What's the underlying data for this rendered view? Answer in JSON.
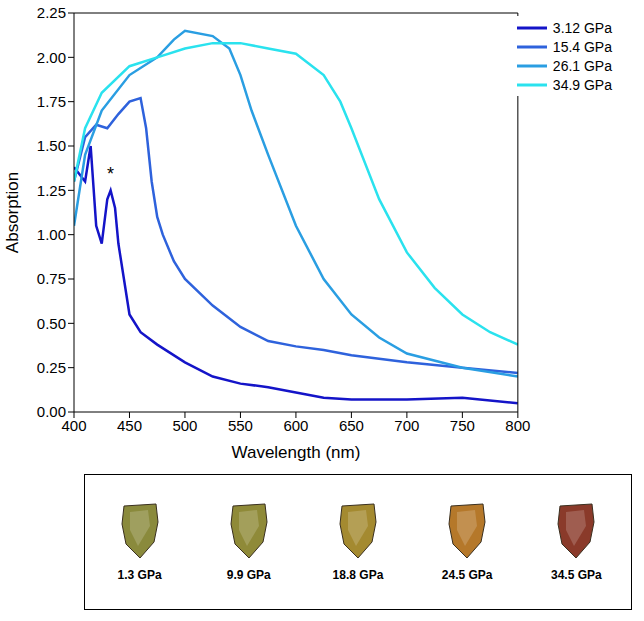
{
  "chart_data": {
    "type": "line",
    "x_label": "Wavelength (nm)",
    "y_label": "Absorption",
    "xlim": [
      400,
      800
    ],
    "xticks": [
      400,
      450,
      500,
      550,
      600,
      650,
      700,
      750,
      800
    ],
    "ylim": [
      0,
      2.25
    ],
    "yticks": [
      {
        "value": 0,
        "label": "0.00"
      },
      {
        "value": 0.25,
        "label": "0.25"
      },
      {
        "value": 0.5,
        "label": "0.50"
      },
      {
        "value": 0.75,
        "label": "0.75"
      },
      {
        "value": 1,
        "label": "1.00"
      },
      {
        "value": 1.25,
        "label": "1.25"
      },
      {
        "value": 1.5,
        "label": "1.50"
      },
      {
        "value": 1.75,
        "label": "1.75"
      },
      {
        "value": 2,
        "label": "2.00"
      },
      {
        "value": 2.25,
        "label": "2.25"
      }
    ],
    "grid": false,
    "legend": "upper right",
    "annotations": [
      {
        "text": "*",
        "x": 433,
        "y": 1.28
      }
    ],
    "series": [
      {
        "name": "3.12 GPa",
        "color": "#1414c8",
        "x": [
          400,
          410,
          415,
          420,
          425,
          430,
          433,
          437,
          440,
          445,
          450,
          460,
          475,
          500,
          525,
          550,
          575,
          600,
          625,
          650,
          700,
          750,
          800
        ],
        "values": [
          1.38,
          1.3,
          1.5,
          1.05,
          0.95,
          1.2,
          1.25,
          1.15,
          0.95,
          0.75,
          0.55,
          0.45,
          0.38,
          0.28,
          0.2,
          0.16,
          0.14,
          0.11,
          0.08,
          0.07,
          0.07,
          0.08,
          0.05
        ]
      },
      {
        "name": "15.4 GPa",
        "color": "#2e62dc",
        "x": [
          400,
          410,
          420,
          430,
          440,
          450,
          460,
          465,
          470,
          475,
          480,
          490,
          500,
          525,
          550,
          575,
          600,
          625,
          650,
          700,
          750,
          800
        ],
        "values": [
          1.3,
          1.55,
          1.62,
          1.6,
          1.68,
          1.75,
          1.77,
          1.6,
          1.3,
          1.1,
          1.0,
          0.85,
          0.75,
          0.6,
          0.48,
          0.4,
          0.37,
          0.35,
          0.32,
          0.28,
          0.25,
          0.22
        ]
      },
      {
        "name": "26.1 GPa",
        "color": "#2a9ee2",
        "x": [
          400,
          410,
          425,
          450,
          475,
          490,
          500,
          525,
          540,
          550,
          560,
          575,
          600,
          625,
          650,
          675,
          700,
          750,
          800
        ],
        "values": [
          1.05,
          1.45,
          1.7,
          1.9,
          2.0,
          2.1,
          2.15,
          2.12,
          2.05,
          1.9,
          1.7,
          1.45,
          1.05,
          0.75,
          0.55,
          0.42,
          0.33,
          0.25,
          0.2
        ]
      },
      {
        "name": "34.9 GPa",
        "color": "#2ae2ee",
        "x": [
          400,
          410,
          425,
          450,
          475,
          500,
          525,
          550,
          575,
          600,
          625,
          640,
          650,
          675,
          700,
          725,
          750,
          775,
          800
        ],
        "values": [
          1.3,
          1.6,
          1.8,
          1.95,
          2.0,
          2.05,
          2.08,
          2.08,
          2.05,
          2.02,
          1.9,
          1.75,
          1.6,
          1.2,
          0.9,
          0.7,
          0.55,
          0.45,
          0.38
        ]
      }
    ]
  },
  "photos": {
    "labels": [
      "1.3 GPa",
      "9.9 GPa",
      "18.8 GPa",
      "24.5 GPa",
      "34.5 GPa"
    ],
    "colors": [
      "#8a8a3c",
      "#8f8a38",
      "#a48a30",
      "#b5782a",
      "#8a3a2a"
    ]
  }
}
